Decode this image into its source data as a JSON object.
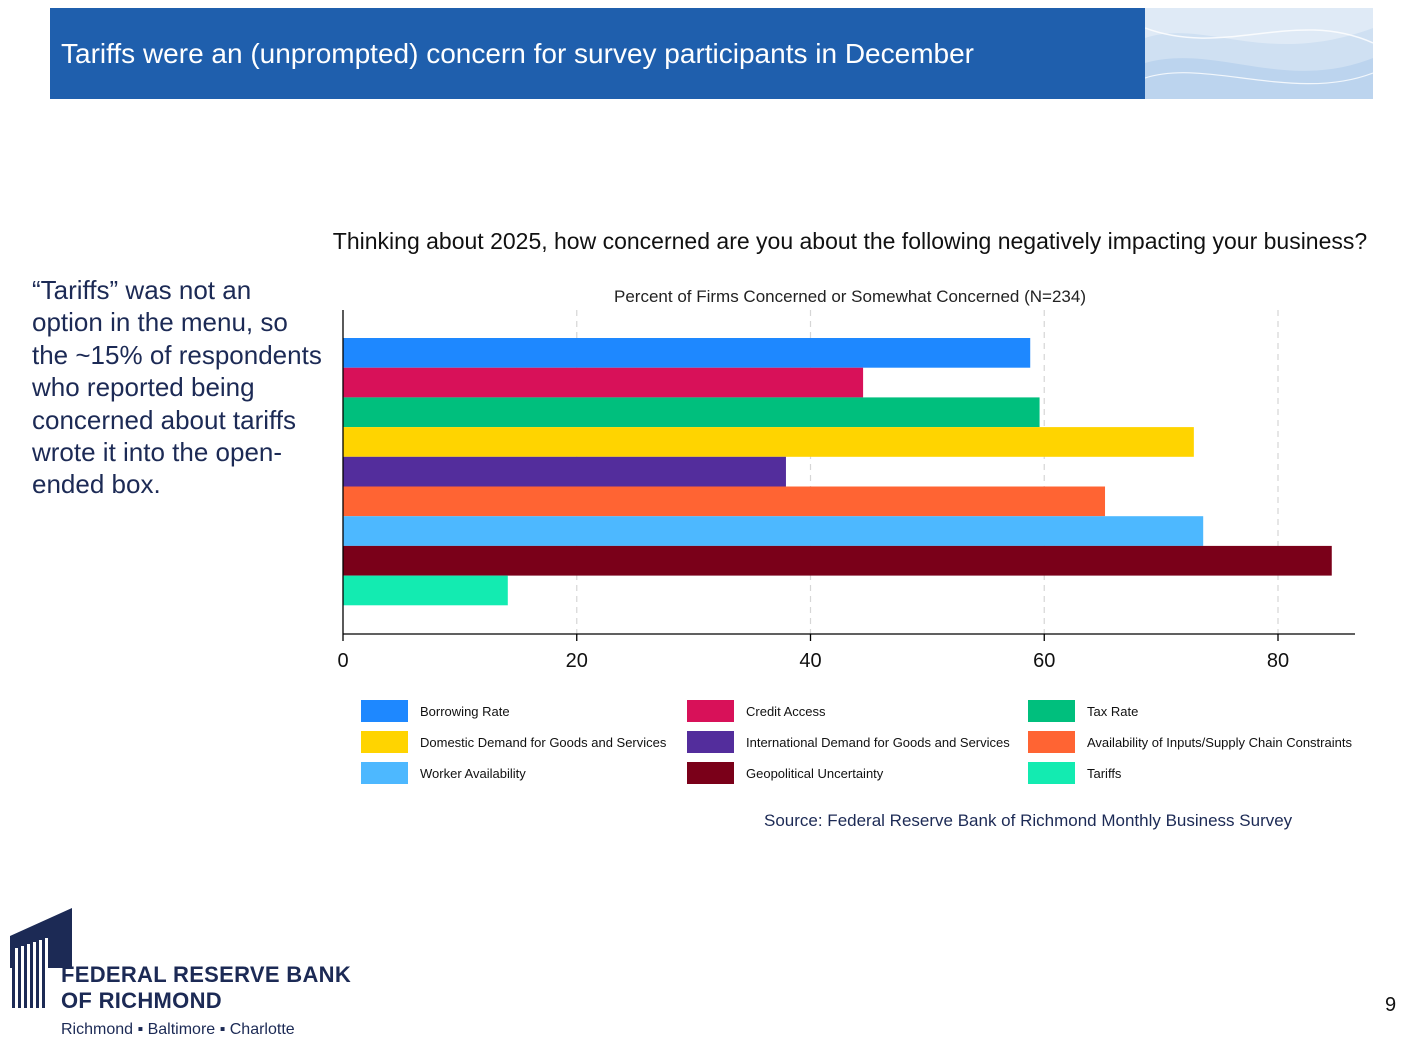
{
  "slide": {
    "title": "Tariffs were an (unprompted) concern for survey participants in December",
    "side_note": "“Tariffs” was not an option in the menu, so the ~15% of respondents who reported being concerned about tariffs wrote it into the open-ended box.",
    "source": "Source: Federal Reserve Bank of Richmond Monthly Business Survey",
    "page_number": "9",
    "header_color": "#1f5fad"
  },
  "logo": {
    "line1": "FEDERAL RESERVE BANK",
    "line2": "OF RICHMOND",
    "cities": "Richmond ▪ Baltimore ▪ Charlotte"
  },
  "chart_data": {
    "type": "bar",
    "orientation": "horizontal",
    "title": "Thinking about 2025, how concerned are you about the following negatively impacting your business?",
    "subtitle": "Percent of Firms Concerned or Somewhat Concerned (N=234)",
    "xlabel": "",
    "ylabel": "",
    "xlim": [
      0,
      87
    ],
    "xticks": [
      0,
      20,
      40,
      60,
      80
    ],
    "grid": "vertical dashed",
    "legend_position": "bottom",
    "series": [
      {
        "name": "Borrowing Rate",
        "value": 58.8,
        "color": "#1e88ff"
      },
      {
        "name": "Credit Access",
        "value": 44.5,
        "color": "#d81159"
      },
      {
        "name": "Tax Rate",
        "value": 59.6,
        "color": "#00bf7d"
      },
      {
        "name": "Domestic Demand for Goods and Services",
        "value": 72.8,
        "color": "#ffd400"
      },
      {
        "name": "International Demand for Goods and Services",
        "value": 37.9,
        "color": "#532d9c"
      },
      {
        "name": "Availability of Inputs/Supply Chain Constraints",
        "value": 65.2,
        "color": "#ff6433"
      },
      {
        "name": "Worker Availability",
        "value": 73.6,
        "color": "#4db8ff"
      },
      {
        "name": "Geopolitical Uncertainty",
        "value": 84.6,
        "color": "#7a0019"
      },
      {
        "name": "Tariffs",
        "value": 14.1,
        "color": "#13ebb1"
      }
    ]
  }
}
